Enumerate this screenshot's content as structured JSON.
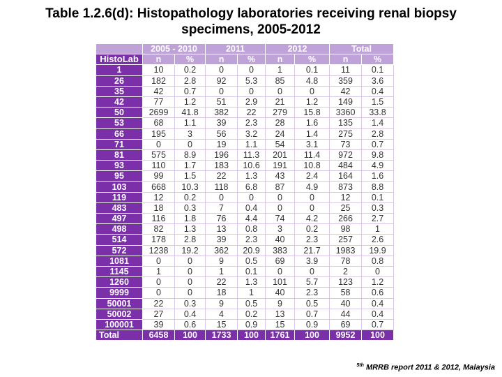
{
  "title": {
    "line1": "Table 1.2.6(d): Histopathology laboratories receiving renal biopsy",
    "line2": "specimens, 2005-2012"
  },
  "table": {
    "row_header": "HistoLab",
    "periods": [
      "2005 - 2010",
      "2011",
      "2012",
      "Total"
    ],
    "sub_headers": [
      "n",
      "%",
      "n",
      "%",
      "n",
      "%",
      "n",
      "%"
    ],
    "rows": [
      {
        "lab": "1",
        "values": [
          "10",
          "0.2",
          "0",
          "0",
          "1",
          "0.1",
          "11",
          "0.1"
        ]
      },
      {
        "lab": "26",
        "values": [
          "182",
          "2.8",
          "92",
          "5.3",
          "85",
          "4.8",
          "359",
          "3.6"
        ]
      },
      {
        "lab": "35",
        "values": [
          "42",
          "0.7",
          "0",
          "0",
          "0",
          "0",
          "42",
          "0.4"
        ]
      },
      {
        "lab": "42",
        "values": [
          "77",
          "1.2",
          "51",
          "2.9",
          "21",
          "1.2",
          "149",
          "1.5"
        ]
      },
      {
        "lab": "50",
        "values": [
          "2699",
          "41.8",
          "382",
          "22",
          "279",
          "15.8",
          "3360",
          "33.8"
        ]
      },
      {
        "lab": "53",
        "values": [
          "68",
          "1.1",
          "39",
          "2.3",
          "28",
          "1.6",
          "135",
          "1.4"
        ]
      },
      {
        "lab": "66",
        "values": [
          "195",
          "3",
          "56",
          "3.2",
          "24",
          "1.4",
          "275",
          "2.8"
        ]
      },
      {
        "lab": "71",
        "values": [
          "0",
          "0",
          "19",
          "1.1",
          "54",
          "3.1",
          "73",
          "0.7"
        ]
      },
      {
        "lab": "81",
        "values": [
          "575",
          "8.9",
          "196",
          "11.3",
          "201",
          "11.4",
          "972",
          "9.8"
        ]
      },
      {
        "lab": "93",
        "values": [
          "110",
          "1.7",
          "183",
          "10.6",
          "191",
          "10.8",
          "484",
          "4.9"
        ]
      },
      {
        "lab": "95",
        "values": [
          "99",
          "1.5",
          "22",
          "1.3",
          "43",
          "2.4",
          "164",
          "1.6"
        ]
      },
      {
        "lab": "103",
        "values": [
          "668",
          "10.3",
          "118",
          "6.8",
          "87",
          "4.9",
          "873",
          "8.8"
        ]
      },
      {
        "lab": "119",
        "values": [
          "12",
          "0.2",
          "0",
          "0",
          "0",
          "0",
          "12",
          "0.1"
        ]
      },
      {
        "lab": "483",
        "values": [
          "18",
          "0.3",
          "7",
          "0.4",
          "0",
          "0",
          "25",
          "0.3"
        ]
      },
      {
        "lab": "497",
        "values": [
          "116",
          "1.8",
          "76",
          "4.4",
          "74",
          "4.2",
          "266",
          "2.7"
        ]
      },
      {
        "lab": "498",
        "values": [
          "82",
          "1.3",
          "13",
          "0.8",
          "3",
          "0.2",
          "98",
          "1"
        ]
      },
      {
        "lab": "514",
        "values": [
          "178",
          "2.8",
          "39",
          "2.3",
          "40",
          "2.3",
          "257",
          "2.6"
        ]
      },
      {
        "lab": "572",
        "values": [
          "1238",
          "19.2",
          "362",
          "20.9",
          "383",
          "21.7",
          "1983",
          "19.9"
        ]
      },
      {
        "lab": "1081",
        "values": [
          "0",
          "0",
          "9",
          "0.5",
          "69",
          "3.9",
          "78",
          "0.8"
        ]
      },
      {
        "lab": "1145",
        "values": [
          "1",
          "0",
          "1",
          "0.1",
          "0",
          "0",
          "2",
          "0"
        ]
      },
      {
        "lab": "1260",
        "values": [
          "0",
          "0",
          "22",
          "1.3",
          "101",
          "5.7",
          "123",
          "1.2"
        ]
      },
      {
        "lab": "9999",
        "values": [
          "0",
          "0",
          "18",
          "1",
          "40",
          "2.3",
          "58",
          "0.6"
        ]
      },
      {
        "lab": "50001",
        "values": [
          "22",
          "0.3",
          "9",
          "0.5",
          "9",
          "0.5",
          "40",
          "0.4"
        ]
      },
      {
        "lab": "50002",
        "values": [
          "27",
          "0.4",
          "4",
          "0.2",
          "13",
          "0.7",
          "44",
          "0.4"
        ]
      },
      {
        "lab": "100001",
        "values": [
          "39",
          "0.6",
          "15",
          "0.9",
          "15",
          "0.9",
          "69",
          "0.7"
        ]
      }
    ],
    "total": {
      "label": "Total",
      "values": [
        "6458",
        "100",
        "1733",
        "100",
        "1761",
        "100",
        "9952",
        "100"
      ]
    }
  },
  "footer": {
    "superscript": "5th",
    "text": " MRRB report 2011 & 2012, Malaysia"
  },
  "colors": {
    "header_dark": "#7b2fa9",
    "header_light": "#bfa2d8"
  }
}
